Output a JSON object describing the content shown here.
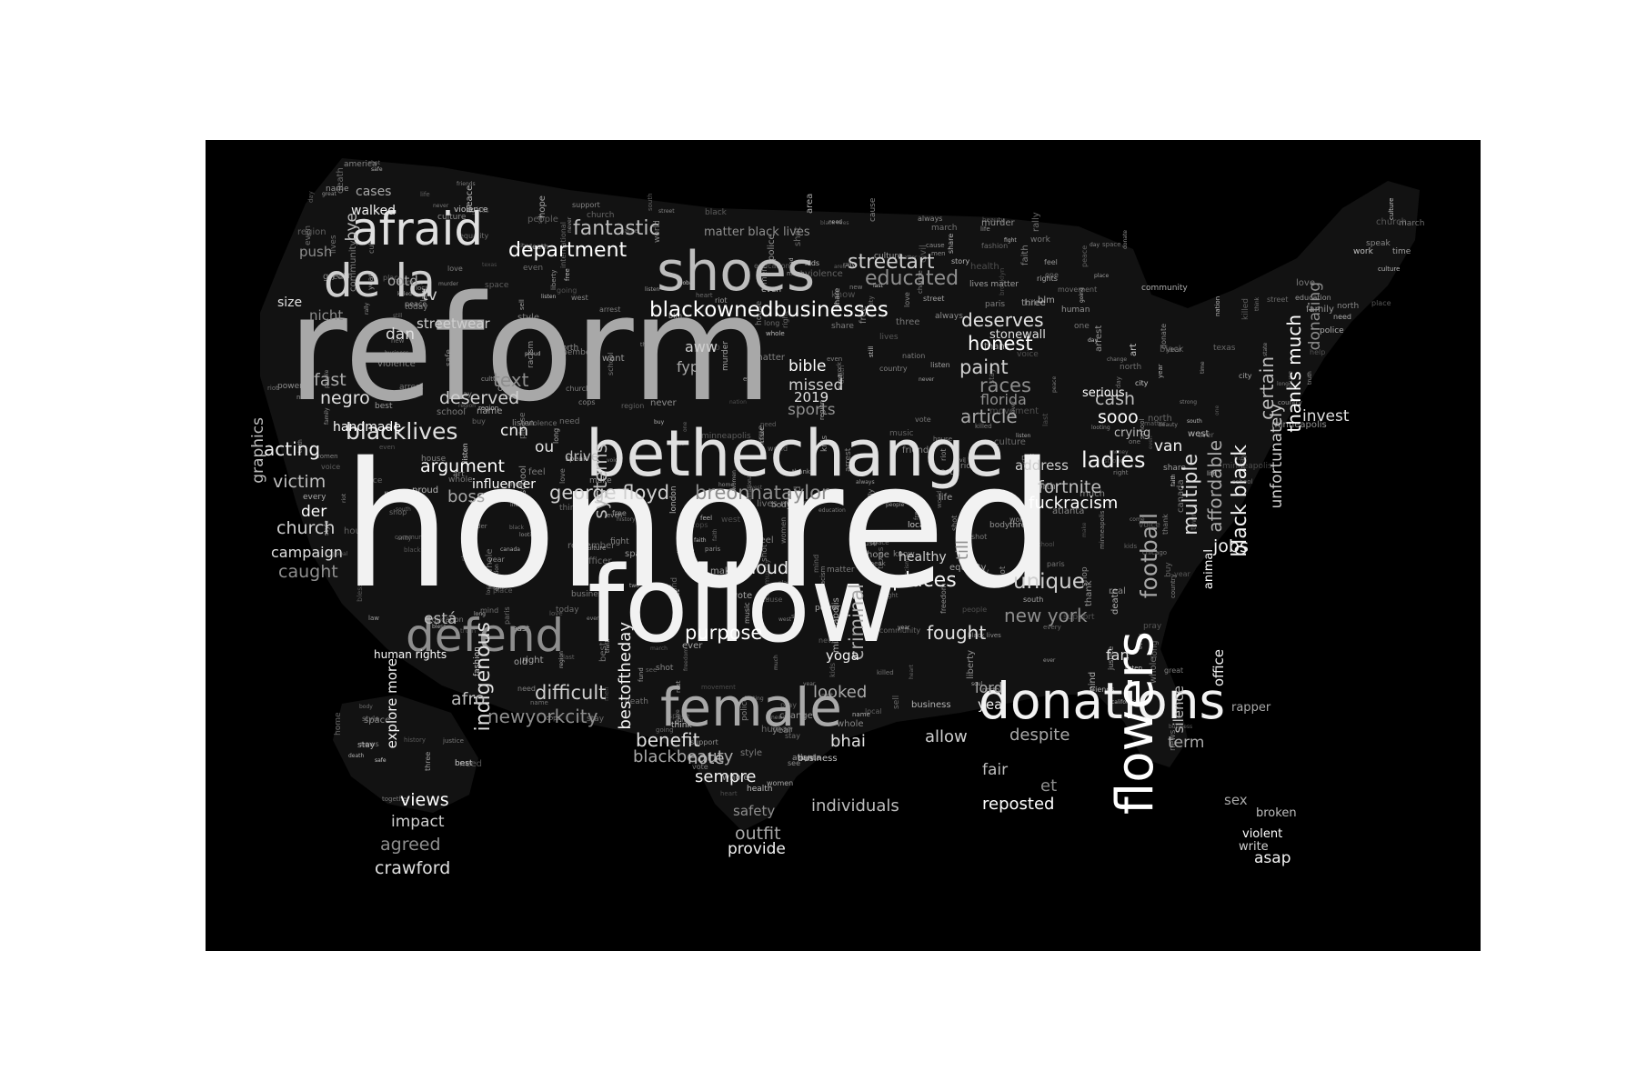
{
  "colors": {
    "background": "#000000",
    "page": "#ffffff",
    "shape": "#121212",
    "palette": [
      "#ffffff",
      "#f2f2f2",
      "#e0e0e0",
      "#cfcfcf",
      "#bdbdbd",
      "#a8a8a8",
      "#8e8e8e"
    ]
  },
  "words": [
    {
      "text": "honored",
      "weight": 1.0
    },
    {
      "text": "reform",
      "weight": 0.86
    },
    {
      "text": "follow",
      "weight": 0.62
    },
    {
      "text": "bethechange",
      "weight": 0.45
    },
    {
      "text": "female",
      "weight": 0.4
    },
    {
      "text": "donations",
      "weight": 0.4
    },
    {
      "text": "shoes",
      "weight": 0.38
    },
    {
      "text": "flowers",
      "weight": 0.36
    },
    {
      "text": "de la",
      "weight": 0.34
    },
    {
      "text": "defend",
      "weight": 0.34
    },
    {
      "text": "afraid",
      "weight": 0.32
    },
    {
      "text": "blackownedbusinesses",
      "weight": 0.2
    },
    {
      "text": "george floyd",
      "weight": 0.2
    },
    {
      "text": "breonnataylor",
      "weight": 0.2
    },
    {
      "text": "blacklives",
      "weight": 0.2
    },
    {
      "text": "football",
      "weight": 0.2
    },
    {
      "text": "places",
      "weight": 0.2
    },
    {
      "text": "fantastic",
      "weight": 0.18
    },
    {
      "text": "department",
      "weight": 0.18
    },
    {
      "text": "streetart",
      "weight": 0.18
    },
    {
      "text": "educated",
      "weight": 0.18
    },
    {
      "text": "multiple",
      "weight": 0.18
    },
    {
      "text": "affordable",
      "weight": 0.18
    },
    {
      "text": "black black",
      "weight": 0.18
    },
    {
      "text": "certain",
      "weight": 0.18
    },
    {
      "text": "thanks much",
      "weight": 0.18
    },
    {
      "text": "unfortunately",
      "weight": 0.16
    },
    {
      "text": "donating",
      "weight": 0.16
    },
    {
      "text": "indigenous",
      "weight": 0.18
    },
    {
      "text": "criminal",
      "weight": 0.18
    },
    {
      "text": "bestoftheday",
      "weight": 0.16
    },
    {
      "text": "systems",
      "weight": 0.16
    },
    {
      "text": "purpose",
      "weight": 0.16
    },
    {
      "text": "difficult",
      "weight": 0.16
    },
    {
      "text": "newyorkcity",
      "weight": 0.16
    },
    {
      "text": "benefit",
      "weight": 0.16
    },
    {
      "text": "blackbeauty",
      "weight": 0.15
    },
    {
      "text": "sempre",
      "weight": 0.15
    },
    {
      "text": "note",
      "weight": 0.15
    },
    {
      "text": "honest",
      "weight": 0.16
    },
    {
      "text": "paint",
      "weight": 0.16
    },
    {
      "text": "races",
      "weight": 0.16
    },
    {
      "text": "deserves",
      "weight": 0.16
    },
    {
      "text": "article",
      "weight": 0.16
    },
    {
      "text": "ladies",
      "weight": 0.18
    },
    {
      "text": "fortnite",
      "weight": 0.16
    },
    {
      "text": "fuckracism",
      "weight": 0.16
    },
    {
      "text": "unique",
      "weight": 0.18
    },
    {
      "text": "new york",
      "weight": 0.16
    },
    {
      "text": "fought",
      "weight": 0.16
    },
    {
      "text": "despite",
      "weight": 0.16
    },
    {
      "text": "jobs",
      "weight": 0.16
    },
    {
      "text": "cash",
      "weight": 0.16
    },
    {
      "text": "sooo",
      "weight": 0.16
    },
    {
      "text": "deserved",
      "weight": 0.16
    },
    {
      "text": "text",
      "weight": 0.16
    },
    {
      "text": "negro",
      "weight": 0.16
    },
    {
      "text": "fast",
      "weight": 0.16
    },
    {
      "text": "acting",
      "weight": 0.16
    },
    {
      "text": "victim",
      "weight": 0.16
    },
    {
      "text": "argument",
      "weight": 0.16
    },
    {
      "text": "church",
      "weight": 0.16
    },
    {
      "text": "caught",
      "weight": 0.16
    },
    {
      "text": "campaign",
      "weight": 0.14
    },
    {
      "text": "boss",
      "weight": 0.16
    },
    {
      "text": "loud",
      "weight": 0.16
    },
    {
      "text": "graphics",
      "weight": 0.16
    },
    {
      "text": "handmade",
      "weight": 0.13
    },
    {
      "text": "streetwear",
      "weight": 0.14
    },
    {
      "text": "push",
      "weight": 0.13
    },
    {
      "text": "dan",
      "weight": 0.16
    },
    {
      "text": "cases",
      "weight": 0.13
    },
    {
      "text": "walked",
      "weight": 0.12
    },
    {
      "text": "bye",
      "weight": 0.16
    },
    {
      "text": "views",
      "weight": 0.15
    },
    {
      "text": "impact",
      "weight": 0.15
    },
    {
      "text": "agreed",
      "weight": 0.16
    },
    {
      "text": "crawford",
      "weight": 0.16
    },
    {
      "text": "outfit",
      "weight": 0.16
    },
    {
      "text": "provide",
      "weight": 0.14
    },
    {
      "text": "individuals",
      "weight": 0.15
    },
    {
      "text": "reposted",
      "weight": 0.15
    },
    {
      "text": "allow",
      "weight": 0.15
    },
    {
      "text": "safety",
      "weight": 0.13
    },
    {
      "text": "bhai",
      "weight": 0.15
    },
    {
      "text": "looked",
      "weight": 0.15
    },
    {
      "text": "yoga",
      "weight": 0.13
    },
    {
      "text": "afro",
      "weight": 0.16
    },
    {
      "text": "bible",
      "weight": 0.14
    },
    {
      "text": "missed",
      "weight": 0.14
    },
    {
      "text": "sports",
      "weight": 0.14
    },
    {
      "text": "2019",
      "weight": 0.13
    },
    {
      "text": "fyp",
      "weight": 0.13
    },
    {
      "text": "cnn",
      "weight": 0.14
    },
    {
      "text": "drive",
      "weight": 0.13
    },
    {
      "text": "influencer",
      "weight": 0.12
    },
    {
      "text": "aww",
      "weight": 0.13
    },
    {
      "text": "matter black lives",
      "weight": 0.12
    },
    {
      "text": "invest",
      "weight": 0.14
    },
    {
      "text": "term",
      "weight": 0.14
    },
    {
      "text": "van",
      "weight": 0.13
    },
    {
      "text": "crying",
      "weight": 0.12
    },
    {
      "text": "serious",
      "weight": 0.11
    },
    {
      "text": "address",
      "weight": 0.12
    },
    {
      "text": "florida",
      "weight": 0.14
    },
    {
      "text": "stonewall",
      "weight": 0.11
    },
    {
      "text": "sex",
      "weight": 0.13
    },
    {
      "text": "asap",
      "weight": 0.13
    },
    {
      "text": "broken",
      "weight": 0.11
    },
    {
      "text": "violent",
      "weight": 0.11
    },
    {
      "text": "write",
      "weight": 0.11
    },
    {
      "text": "et",
      "weight": 0.15
    },
    {
      "text": "fan",
      "weight": 0.13
    },
    {
      "text": "lord",
      "weight": 0.13
    },
    {
      "text": "yea",
      "weight": 0.12
    },
    {
      "text": "fair",
      "weight": 0.14
    },
    {
      "text": "der",
      "weight": 0.15
    },
    {
      "text": "tv",
      "weight": 0.15
    },
    {
      "text": "nicht",
      "weight": 0.13
    },
    {
      "text": "size",
      "weight": 0.12
    },
    {
      "text": "ootd",
      "weight": 0.13
    },
    {
      "text": "explore more",
      "weight": 0.12
    },
    {
      "text": "está",
      "weight": 0.13
    },
    {
      "text": "human rights",
      "weight": 0.11
    },
    {
      "text": "healthy",
      "weight": 0.12
    },
    {
      "text": "till",
      "weight": 0.14
    },
    {
      "text": "ou",
      "weight": 0.13
    },
    {
      "text": "rapper",
      "weight": 0.11
    },
    {
      "text": "office",
      "weight": 0.12
    },
    {
      "text": "silence",
      "weight": 0.12
    },
    {
      "text": "animal",
      "weight": 0.11
    }
  ],
  "filler_words": [
    "love",
    "black",
    "lives",
    "matter",
    "justice",
    "peace",
    "people",
    "support",
    "community",
    "change",
    "protest",
    "art",
    "music",
    "family",
    "life",
    "world",
    "free",
    "power",
    "voice",
    "racism",
    "equality",
    "history",
    "today",
    "time",
    "make",
    "help",
    "never",
    "always",
    "america",
    "police",
    "vote",
    "stand",
    "together",
    "hope",
    "stay",
    "safe",
    "fight",
    "right",
    "need",
    "good",
    "thank",
    "blm",
    "please",
    "share",
    "strong",
    "unity",
    "human",
    "proud",
    "beauty",
    "culture",
    "style",
    "fashion",
    "photo",
    "news",
    "city",
    "state",
    "year",
    "day",
    "work",
    "friends",
    "kids",
    "women",
    "men",
    "young",
    "old",
    "black lives",
    "lives matter",
    "say",
    "name",
    "remember",
    "rest",
    "know",
    "think",
    "feel",
    "see",
    "look",
    "come",
    "going",
    "want",
    "even",
    "much",
    "still",
    "ever",
    "great",
    "best",
    "new",
    "first",
    "last",
    "long",
    "real",
    "true",
    "whole",
    "every",
    "one",
    "two",
    "three",
    "story",
    "truth",
    "learn",
    "read",
    "listen",
    "speak",
    "education",
    "school",
    "church",
    "faith",
    "god",
    "bless",
    "pray",
    "heart",
    "mind",
    "soul",
    "body",
    "health",
    "money",
    "business",
    "shop",
    "buy",
    "sell",
    "support black",
    "donate",
    "fund",
    "cause",
    "movement",
    "march",
    "rally",
    "riot",
    "looting",
    "violence",
    "death",
    "murder",
    "killed",
    "shot",
    "arrest",
    "cops",
    "officer",
    "law",
    "rights",
    "civil",
    "freedom",
    "liberty",
    "nation",
    "country",
    "global",
    "international",
    "local",
    "town",
    "street",
    "home",
    "house",
    "place",
    "space",
    "area",
    "region",
    "south",
    "north",
    "east",
    "west",
    "minneapolis",
    "chicago",
    "brooklyn",
    "atlanta",
    "texas",
    "california",
    "canada",
    "london",
    "paris"
  ]
}
